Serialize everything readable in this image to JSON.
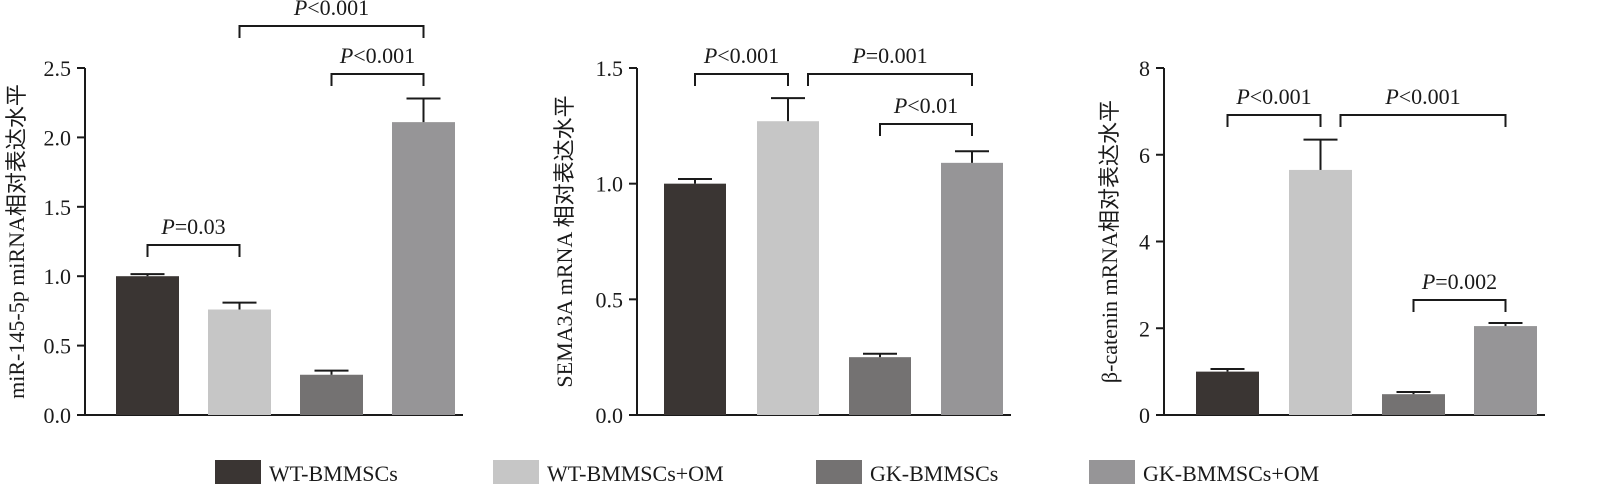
{
  "legend": [
    {
      "name": "WT-BMMSCs",
      "color": "#3a3533"
    },
    {
      "name": "WT-BMMSCs+OM",
      "color": "#c6c6c6"
    },
    {
      "name": "GK-BMMSCs",
      "color": "#747272"
    },
    {
      "name": "GK-BMMSCs+OM",
      "color": "#969597"
    }
  ],
  "chart_data": [
    {
      "type": "bar",
      "ylabel": "miR-145-5p miRNA相对表达水平",
      "ylim": [
        0,
        2.5
      ],
      "yticks": [
        "0.0",
        "0.5",
        "1.0",
        "1.5",
        "2.0",
        "2.5"
      ],
      "categories": [
        "WT-BMMSCs",
        "WT-BMMSCs+OM",
        "GK-BMMSCs",
        "GK-BMMSCs+OM"
      ],
      "values": [
        1.0,
        0.76,
        0.29,
        2.11
      ],
      "errors": [
        0.015,
        0.05,
        0.03,
        0.17
      ],
      "significance": [
        {
          "from": 0,
          "to": 1,
          "label": "P=0.03"
        },
        {
          "from": 2,
          "to": 3,
          "label": "P<0.001"
        },
        {
          "from": 1,
          "to": 3,
          "label": "P<0.001"
        }
      ]
    },
    {
      "type": "bar",
      "ylabel": "SEMA3A mRNA 相对表达水平",
      "ylim": [
        0,
        1.5
      ],
      "yticks": [
        "0.0",
        "0.5",
        "1.0",
        "1.5"
      ],
      "categories": [
        "WT-BMMSCs",
        "WT-BMMSCs+OM",
        "GK-BMMSCs",
        "GK-BMMSCs+OM"
      ],
      "values": [
        1.0,
        1.27,
        0.25,
        1.09
      ],
      "errors": [
        0.02,
        0.1,
        0.015,
        0.05
      ],
      "significance": [
        {
          "from": 0,
          "to": 1,
          "label": "P<0.001"
        },
        {
          "from": 1,
          "to": 3,
          "label": "P=0.001"
        },
        {
          "from": 2,
          "to": 3,
          "label": "P<0.01"
        }
      ]
    },
    {
      "type": "bar",
      "ylabel": "β-catenin mRNA相对表达水平",
      "ylim": [
        0,
        8
      ],
      "yticks": [
        "0",
        "2",
        "4",
        "6",
        "8"
      ],
      "categories": [
        "WT-BMMSCs",
        "WT-BMMSCs+OM",
        "GK-BMMSCs",
        "GK-BMMSCs+OM"
      ],
      "values": [
        1.0,
        5.65,
        0.48,
        2.05
      ],
      "errors": [
        0.06,
        0.7,
        0.05,
        0.07
      ],
      "significance": [
        {
          "from": 0,
          "to": 1,
          "label": "P<0.001"
        },
        {
          "from": 1,
          "to": 3,
          "label": "P<0.001"
        },
        {
          "from": 2,
          "to": 3,
          "label": "P=0.002"
        }
      ]
    }
  ]
}
